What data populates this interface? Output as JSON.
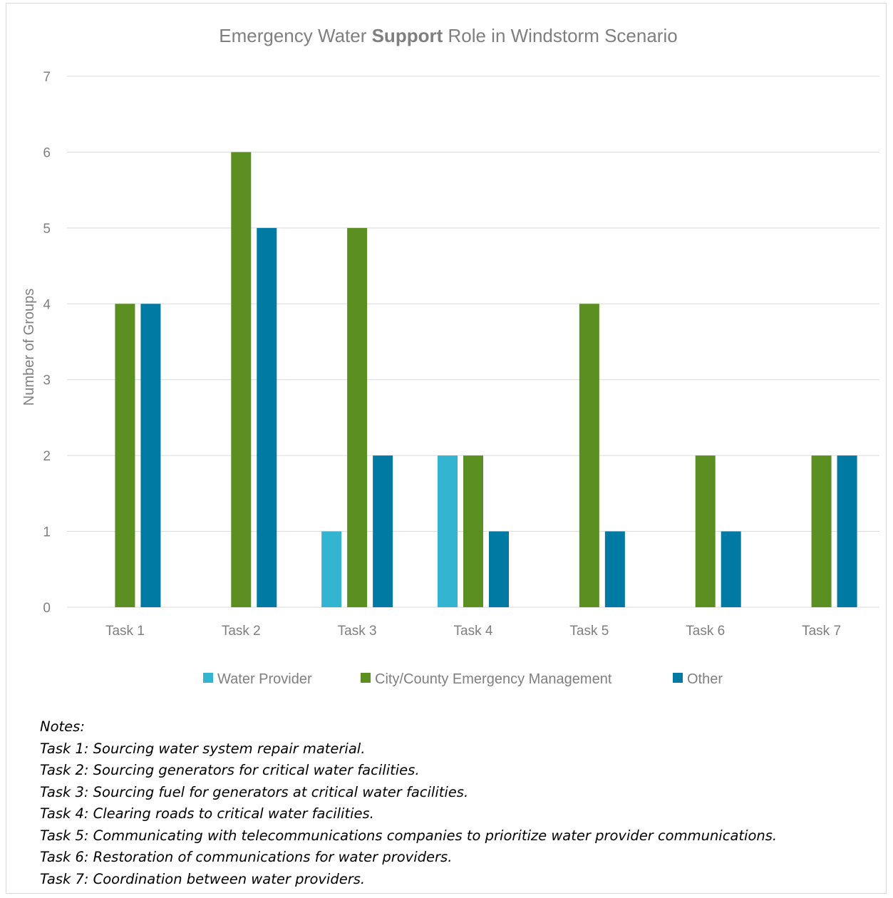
{
  "chart_data": {
    "type": "bar",
    "title_parts": {
      "before": "Emergency Water ",
      "bold": "Support",
      "after": " Role in Windstorm Scenario"
    },
    "xlabel": "",
    "ylabel": "Number of Groups",
    "ylim": [
      0,
      7
    ],
    "yticks": [
      "0",
      "1",
      "2",
      "3",
      "4",
      "5",
      "6",
      "7"
    ],
    "grid": true,
    "legend_position": "bottom",
    "categories": [
      "Task 1",
      "Task 2",
      "Task 3",
      "Task 4",
      "Task 5",
      "Task 6",
      "Task 7"
    ],
    "series": [
      {
        "name": "Water Provider",
        "color": "#33b5d1",
        "values": [
          0,
          0,
          1,
          2,
          0,
          0,
          0
        ]
      },
      {
        "name": "City/County Emergency Management",
        "color": "#5b8f22",
        "values": [
          4,
          6,
          5,
          2,
          4,
          2,
          2
        ]
      },
      {
        "name": "Other",
        "color": "#007aa3",
        "values": [
          4,
          5,
          2,
          1,
          1,
          1,
          2
        ]
      }
    ]
  },
  "notes": {
    "heading": "Notes:",
    "lines": [
      "Task 1: Sourcing water system repair material.",
      "Task 2: Sourcing generators for critical water facilities.",
      "Task 3: Sourcing fuel for generators at critical water facilities.",
      "Task 4: Clearing roads to critical water facilities.",
      "Task 5: Communicating with telecommunications companies to prioritize water provider communications.",
      "Task 6: Restoration of communications for water providers.",
      "Task 7: Coordination between water providers."
    ]
  }
}
